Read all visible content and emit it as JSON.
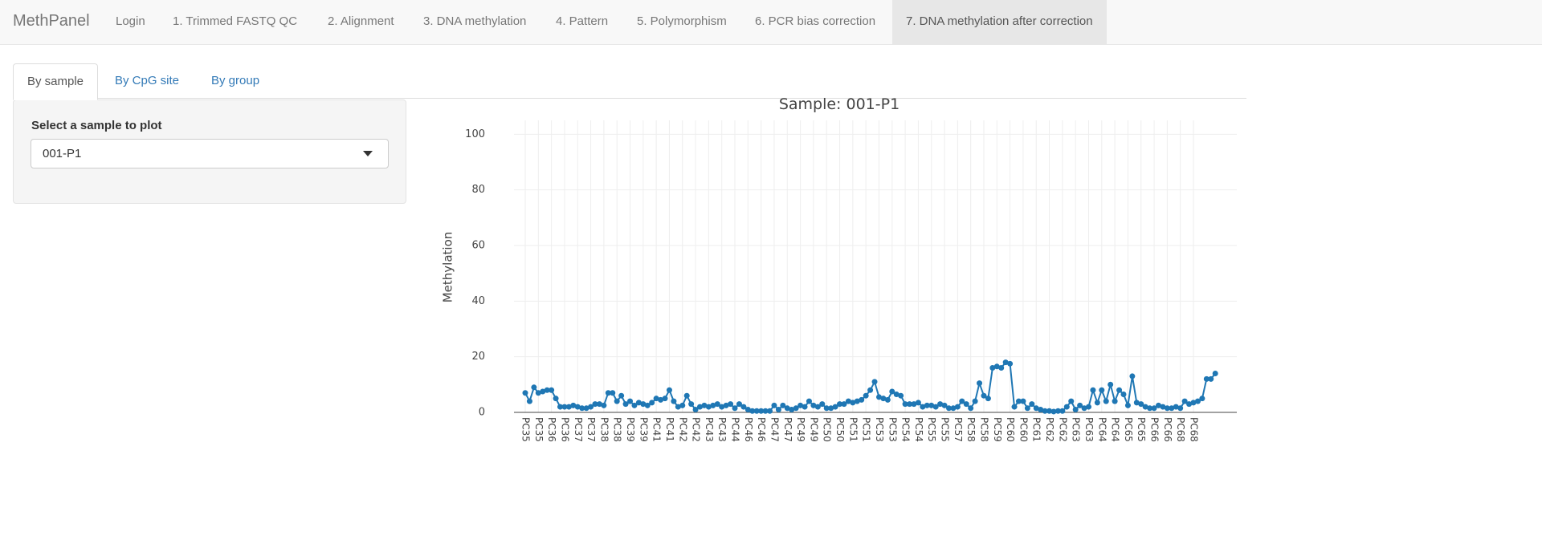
{
  "nav": {
    "brand": "MethPanel",
    "items": [
      "Login",
      "1. Trimmed FASTQ QC",
      "2. Alignment",
      "3. DNA methylation",
      "4. Pattern",
      "5. Polymorphism",
      "6. PCR bias correction",
      "7. DNA methylation after correction"
    ],
    "active": 7
  },
  "tabs": {
    "items": [
      "By sample",
      "By CpG site",
      "By group"
    ],
    "active": 0
  },
  "panel": {
    "label": "Select a sample to plot",
    "selected": "001-P1"
  },
  "chart_data": {
    "type": "line",
    "title": "Sample: 001-P1",
    "y_label": "Methylation",
    "categories": [
      "PC35",
      null,
      null,
      "PC35",
      null,
      null,
      "PC36",
      null,
      null,
      "PC36",
      null,
      null,
      "PC37",
      null,
      null,
      "PC37",
      null,
      null,
      "PC38",
      null,
      null,
      "PC38",
      null,
      null,
      "PC39",
      null,
      null,
      "PC39",
      null,
      null,
      "PC41",
      null,
      null,
      "PC41",
      null,
      null,
      "PC42",
      null,
      null,
      "PC42",
      null,
      null,
      "PC43",
      null,
      null,
      "PC43",
      null,
      null,
      "PC44",
      null,
      null,
      "PC46",
      null,
      null,
      "PC46",
      null,
      null,
      "PC47",
      null,
      null,
      "PC47",
      null,
      null,
      "PC49",
      null,
      null,
      "PC49",
      null,
      null,
      "PC50",
      null,
      null,
      "PC50",
      null,
      null,
      "PC51",
      null,
      null,
      "PC51",
      null,
      null,
      "PC53",
      null,
      null,
      "PC53",
      null,
      null,
      "PC54",
      null,
      null,
      "PC54",
      null,
      null,
      "PC55",
      null,
      null,
      "PC55",
      null,
      null,
      "PC57",
      null,
      null,
      "PC58",
      null,
      null,
      "PC58",
      null,
      null,
      "PC59",
      null,
      null,
      "PC60",
      null,
      null,
      "PC60",
      null,
      null,
      "PC61",
      null,
      null,
      "PC62",
      null,
      null,
      "PC62",
      null,
      null,
      "PC63",
      null,
      null,
      "PC63",
      null,
      null,
      "PC64",
      null,
      null,
      "PC64",
      null,
      null,
      "PC65",
      null,
      null,
      "PC65",
      null,
      null,
      "PC66",
      null,
      null,
      "PC66",
      null,
      null,
      "PC68",
      null,
      null,
      "PC68",
      null,
      null,
      null,
      null,
      null
    ],
    "values": [
      7,
      4,
      9,
      7,
      7.5,
      8,
      8,
      5,
      2,
      2,
      2,
      2.5,
      2,
      1.5,
      1.5,
      2,
      3,
      3,
      2.5,
      7,
      7,
      4,
      6,
      3,
      4,
      2.5,
      3.5,
      3,
      2.5,
      3.5,
      5,
      4.5,
      5,
      8,
      4,
      2,
      2.5,
      6,
      3,
      1,
      2,
      2.5,
      2,
      2.5,
      3,
      2,
      2.5,
      3,
      1.5,
      3,
      2,
      1,
      0.5,
      0.5,
      0.5,
      0.5,
      0.5,
      2.5,
      1,
      2.5,
      1.5,
      1,
      1.5,
      2.5,
      2,
      4,
      2.5,
      2,
      3,
      1.5,
      1.5,
      2,
      3,
      3,
      4,
      3.5,
      4,
      4.5,
      6,
      8,
      11,
      5.5,
      5,
      4.5,
      7.5,
      6.5,
      6,
      3,
      3,
      3,
      3.5,
      2,
      2.5,
      2.5,
      2,
      3,
      2.5,
      1.5,
      1.5,
      2,
      4,
      3,
      1.5,
      4,
      10.5,
      6,
      5,
      16,
      16.5,
      16,
      18,
      17.5,
      2,
      4,
      4,
      1.5,
      3,
      1.5,
      1,
      0.5,
      0.5,
      0.3,
      0.5,
      0.5,
      2,
      4,
      1,
      2.5,
      1.5,
      2,
      8,
      3.5,
      8,
      4,
      10,
      4,
      8,
      6.5,
      2.5,
      13,
      3.5,
      3,
      2,
      1.5,
      1.5,
      2.5,
      2,
      1.5,
      1.5,
      2,
      1.5,
      4,
      3,
      3.5,
      4,
      5,
      12,
      12,
      14
    ],
    "color": "#1f77b4",
    "ylim": [
      0,
      105
    ],
    "yticks": [
      0,
      20,
      40,
      60,
      80,
      100
    ],
    "grid": true
  }
}
